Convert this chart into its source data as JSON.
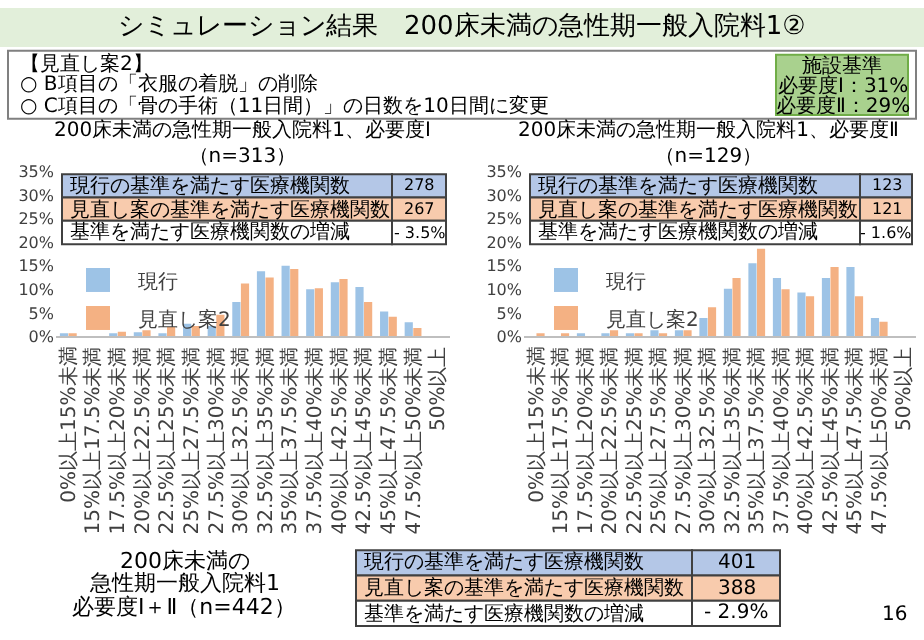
{
  "chart_data": [
    {
      "type": "other",
      "title": "シミュレーション結果　200床未満の急性期一般入院料1②",
      "annotations": [
        "【見直し案2】",
        "○ B項目の「衣服の着脱」の削除",
        "○ C項目の「骨の手術（11日間）」の日数を10日間に変更",
        "施設基準",
        "必要度Ⅰ：31%",
        "必要度Ⅱ：29%",
        "200床未満の",
        "急性期一般入院料1",
        "必要度Ⅰ＋Ⅱ（n=442）",
        "現行の基準を満たす医療機関数",
        "401",
        "見直し案の基準を満たす医療機関数",
        "388",
        "基準を満たす医療機関数の増減",
        "- 2.9%",
        "16"
      ]
    },
    {
      "type": "bar",
      "title": "200床未満の急性期一般入院料1、必要度Ⅰ（n=313）",
      "categories": [
        "0%以上15%未満",
        "15%以上17.5%未満",
        "17.5%以上20%未満",
        "20%以上22.5%未満",
        "22.5%以上25%未満",
        "25%以上27.5%未満",
        "27.5%以上30%未満",
        "30%以上32.5%未満",
        "32.5%以上35%未満",
        "35%以上37.5%未満",
        "37.5%以上40%未満",
        "40%以上42.5%未満",
        "42.5%以上45%未満",
        "45%以上47.5%未満",
        "47.5%以上50%未満",
        "50%以上"
      ],
      "series": [
        {
          "name": "現行",
          "color": "#9dc3e6",
          "values": [
            0.3,
            0,
            0.6,
            0.9,
            0.6,
            2.7,
            2.2,
            7.3,
            13.8,
            15.0,
            10.0,
            11.5,
            10.5,
            5.3,
            3.0,
            0
          ]
        },
        {
          "name": "見直し案2",
          "color": "#f4b183",
          "values": [
            0.3,
            0,
            1.0,
            1.3,
            2.0,
            2.2,
            4.6,
            11.2,
            12.5,
            14.3,
            10.2,
            12.2,
            7.3,
            4.2,
            1.8,
            0
          ]
        }
      ],
      "ylim": [
        0,
        35
      ],
      "yticks": [
        {
          "value": 0,
          "label": "0%"
        },
        {
          "value": 5,
          "label": "5%"
        },
        {
          "value": 10,
          "label": "10%"
        },
        {
          "value": 15,
          "label": "15%"
        },
        {
          "value": 20,
          "label": "20%"
        },
        {
          "value": 25,
          "label": "25%"
        },
        {
          "value": 30,
          "label": "30%"
        },
        {
          "value": 35,
          "label": "35%"
        }
      ],
      "legend": "left",
      "annotations": [
        "現行の基準を満たす医療機関数",
        "278",
        "見直し案の基準を満たす医療機関数",
        "267",
        "基準を満たす医療機関数の増減",
        "- 3.5%"
      ]
    },
    {
      "type": "bar",
      "title": "200床未満の急性期一般入院料1、必要度Ⅱ（n=129）",
      "categories": [
        "0%以上15%未満",
        "15%以上17.5%未満",
        "17.5%以上20%未満",
        "20%以上22.5%未満",
        "22.5%以上25%未満",
        "25%以上27.5%未満",
        "27.5%以上30%未満",
        "30%以上32.5%未満",
        "32.5%以上35%未満",
        "35%以上37.5%未満",
        "37.5%以上40%未満",
        "40%以上42.5%未満",
        "42.5%以上45%未満",
        "45%以上47.5%未満",
        "47.5%以上50%未満",
        "50%以上"
      ],
      "series": [
        {
          "name": "現行",
          "color": "#9dc3e6",
          "values": [
            0,
            0,
            0.5,
            0.5,
            0.6,
            1.3,
            1.3,
            3.9,
            10.1,
            15.5,
            12.4,
            9.3,
            12.4,
            14.7,
            3.9,
            0
          ]
        },
        {
          "name": "見直し案2",
          "color": "#f4b183",
          "values": [
            0.5,
            0.5,
            0,
            1.3,
            0.6,
            0.7,
            1.3,
            6.2,
            12.4,
            18.6,
            10.0,
            8.5,
            14.7,
            8.5,
            3.1,
            0
          ]
        }
      ],
      "ylim": [
        0,
        35
      ],
      "yticks": [
        {
          "value": 0,
          "label": "0%"
        },
        {
          "value": 5,
          "label": "5%"
        },
        {
          "value": 10,
          "label": "10%"
        },
        {
          "value": 15,
          "label": "15%"
        },
        {
          "value": 20,
          "label": "20%"
        },
        {
          "value": 25,
          "label": "25%"
        },
        {
          "value": 30,
          "label": "30%"
        },
        {
          "value": 35,
          "label": "35%"
        }
      ],
      "legend": "left",
      "annotations": [
        "現行の基準を満たす医療機関数",
        "123",
        "見直し案の基準を満たす医療機関数",
        "121",
        "基準を満たす医療機関数の増減",
        "- 1.6%"
      ]
    }
  ]
}
